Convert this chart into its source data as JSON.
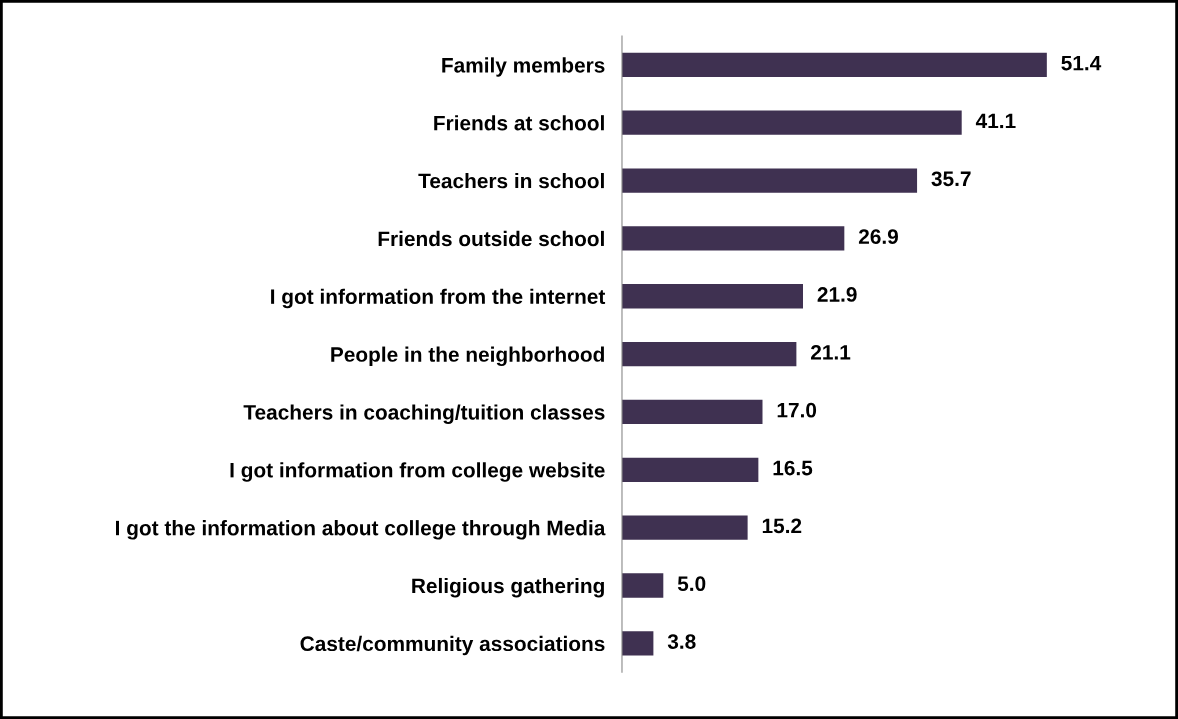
{
  "chart_data": {
    "type": "bar",
    "orientation": "horizontal",
    "categories": [
      "Family members",
      "Friends at school",
      "Teachers in school",
      "Friends outside school",
      "I got information from the internet",
      "People in the neighborhood",
      "Teachers in coaching/tuition classes",
      "I got information from college website",
      "I got the information about college through Media",
      "Religious gathering",
      "Caste/community associations"
    ],
    "values": [
      51.4,
      41.1,
      35.7,
      26.9,
      21.9,
      21.1,
      17.0,
      16.5,
      15.2,
      5.0,
      3.8
    ],
    "value_labels": [
      "51.4",
      "41.1",
      "35.7",
      "26.9",
      "21.9",
      "21.1",
      "17.0",
      "16.5",
      "15.2",
      "5.0",
      "3.8"
    ],
    "color": "#3f3151",
    "grid": false
  }
}
